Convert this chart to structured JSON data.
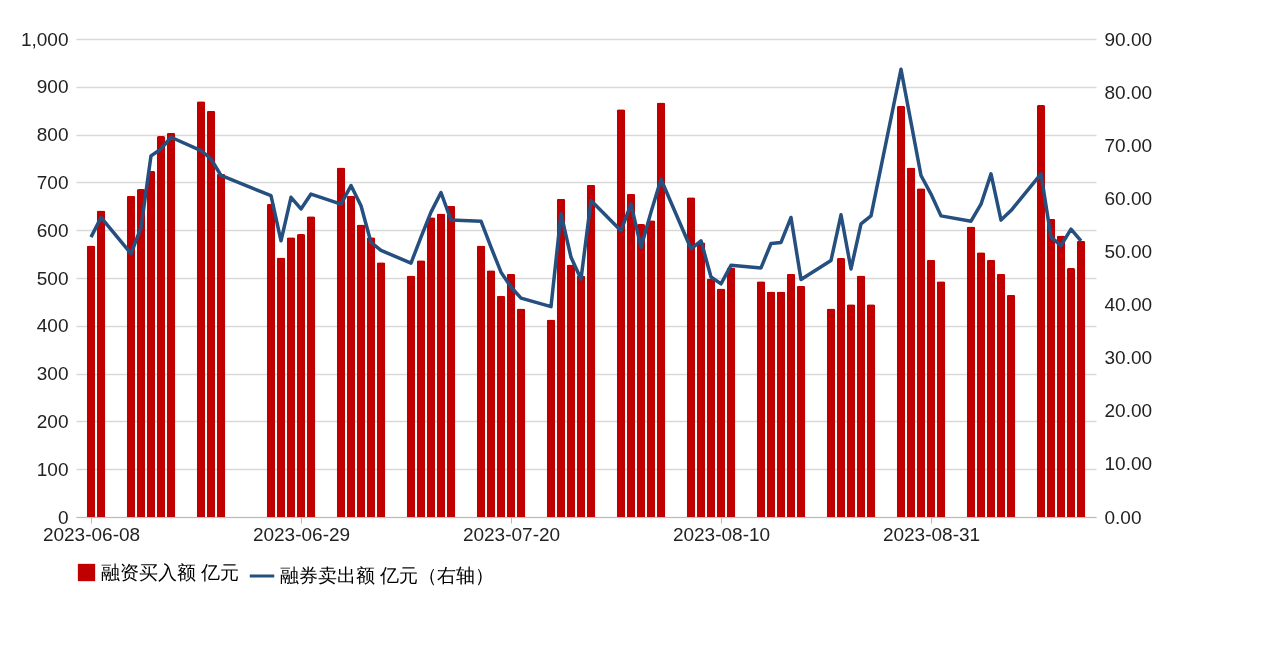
{
  "chart_data": {
    "type": "bar",
    "x": [
      "2023-06-08",
      "2023-06-09",
      "2023-06-12",
      "2023-06-13",
      "2023-06-14",
      "2023-06-15",
      "2023-06-16",
      "2023-06-19",
      "2023-06-20",
      "2023-06-21",
      "2023-06-26",
      "2023-06-27",
      "2023-06-28",
      "2023-06-29",
      "2023-06-30",
      "2023-07-03",
      "2023-07-04",
      "2023-07-05",
      "2023-07-06",
      "2023-07-07",
      "2023-07-10",
      "2023-07-11",
      "2023-07-12",
      "2023-07-13",
      "2023-07-14",
      "2023-07-17",
      "2023-07-18",
      "2023-07-19",
      "2023-07-20",
      "2023-07-21",
      "2023-07-24",
      "2023-07-25",
      "2023-07-26",
      "2023-07-27",
      "2023-07-28",
      "2023-07-31",
      "2023-08-01",
      "2023-08-02",
      "2023-08-03",
      "2023-08-04",
      "2023-08-07",
      "2023-08-08",
      "2023-08-09",
      "2023-08-10",
      "2023-08-11",
      "2023-08-14",
      "2023-08-15",
      "2023-08-16",
      "2023-08-17",
      "2023-08-18",
      "2023-08-21",
      "2023-08-22",
      "2023-08-23",
      "2023-08-24",
      "2023-08-25",
      "2023-08-28",
      "2023-08-29",
      "2023-08-30",
      "2023-08-31",
      "2023-09-01",
      "2023-09-04",
      "2023-09-05",
      "2023-09-06",
      "2023-09-07",
      "2023-09-08",
      "2023-09-11",
      "2023-09-12",
      "2023-09-13",
      "2023-09-14",
      "2023-09-15"
    ],
    "series": [
      {
        "name": "融资买入额 亿元",
        "color": "#c00000",
        "values": [
          568,
          641,
          672,
          686,
          724,
          797,
          804,
          870,
          850,
          718,
          655,
          543,
          585,
          592,
          629,
          731,
          672,
          612,
          585,
          533,
          505,
          537,
          627,
          635,
          651,
          568,
          516,
          463,
          509,
          436,
          413,
          666,
          528,
          505,
          695,
          853,
          676,
          613,
          621,
          867,
          669,
          575,
          499,
          478,
          522,
          493,
          472,
          472,
          509,
          484,
          436,
          542,
          445,
          505,
          445,
          860,
          731,
          688,
          538,
          493,
          608,
          554,
          538,
          509,
          465,
          862,
          624,
          589,
          521,
          578
        ]
      },
      {
        "name": "融券卖出额 亿元（右轴）",
        "type": "line",
        "axis": "y2",
        "color": "#254f7e",
        "values": [
          52.7,
          56.4,
          49.6,
          54.5,
          68.0,
          69.3,
          71.5,
          69.0,
          67.4,
          64.3,
          60.5,
          52.0,
          60.2,
          58.0,
          60.8,
          58.9,
          62.4,
          58.6,
          51.7,
          50.2,
          47.8,
          52.7,
          57.4,
          61.1,
          55.9,
          55.7,
          50.8,
          46.1,
          43.3,
          41.2,
          39.6,
          57.1,
          48.9,
          44.8,
          59.6,
          53.9,
          58.9,
          50.8,
          57.4,
          63.6,
          50.5,
          52.0,
          45.2,
          43.9,
          47.4,
          46.9,
          51.5,
          51.7,
          56.4,
          44.7,
          48.3,
          56.9,
          46.7,
          55.2,
          56.7,
          84.3,
          74.3,
          64.3,
          60.8,
          56.7,
          55.7,
          58.9,
          64.6,
          55.9,
          57.7,
          64.6,
          52.7,
          51.1,
          54.2,
          52.0
        ]
      }
    ],
    "xlim": [
      "2023-06-07",
      "2023-09-16"
    ],
    "xticks": [
      "2023-06-08",
      "2023-06-29",
      "2023-07-20",
      "2023-08-10",
      "2023-08-31"
    ],
    "ylim": [
      0,
      1000
    ],
    "yticks": [
      0,
      100,
      200,
      300,
      400,
      500,
      600,
      700,
      800,
      900,
      {
        "value": 1000,
        "label": "1,000"
      }
    ],
    "y2lim": [
      0,
      90
    ],
    "y2ticks": [
      {
        "value": 0,
        "label": "0.00"
      },
      {
        "value": 10,
        "label": "10.00"
      },
      {
        "value": 20,
        "label": "20.00"
      },
      {
        "value": 30,
        "label": "30.00"
      },
      {
        "value": 40,
        "label": "40.00"
      },
      {
        "value": 50,
        "label": "50.00"
      },
      {
        "value": 60,
        "label": "60.00"
      },
      {
        "value": 70,
        "label": "70.00"
      },
      {
        "value": 80,
        "label": "80.00"
      },
      {
        "value": 90,
        "label": "90.00"
      }
    ],
    "grid": "y",
    "legend": "bottom"
  }
}
